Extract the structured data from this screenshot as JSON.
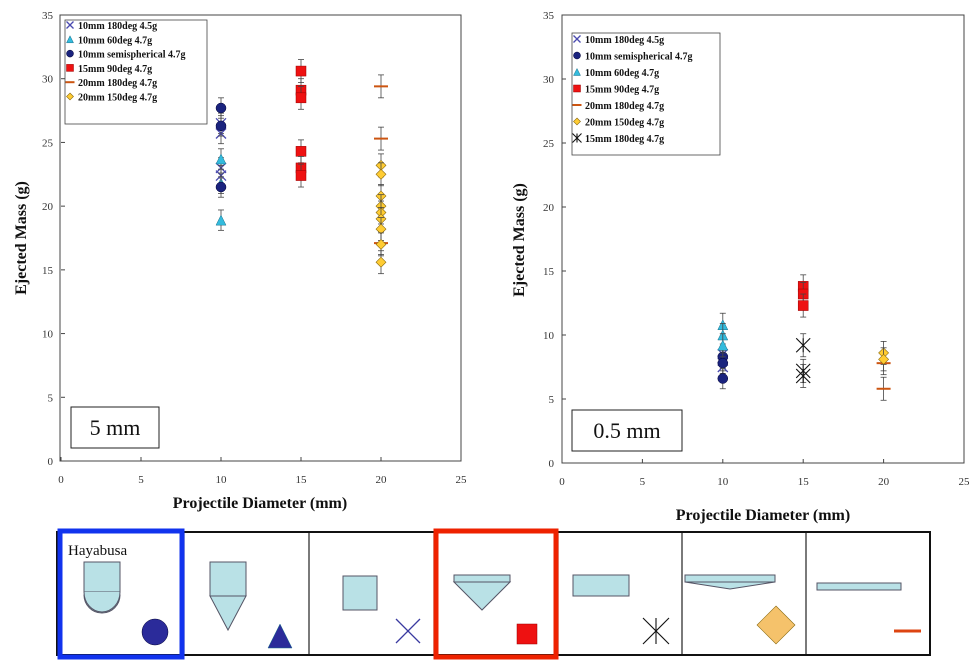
{
  "chart_data": [
    {
      "type": "scatter",
      "title": "",
      "xlabel": "Projectile Diameter (mm)",
      "ylabel": "Ejected Mass (g)",
      "xlim": [
        0,
        25
      ],
      "ylim": [
        0,
        35
      ],
      "xticks": [
        "0",
        "5",
        "10",
        "15",
        "20",
        "25"
      ],
      "yticks": [
        "0",
        "5",
        "10",
        "15",
        "20",
        "25",
        "30",
        "35"
      ],
      "grid": false,
      "legend_position": "top-left",
      "annotation": "5 mm",
      "series": [
        {
          "name": "10mm 180deg 4.5g",
          "marker": "x",
          "color": "#4a4ab0",
          "points": [
            [
              10,
              26.5
            ],
            [
              10,
              25.7
            ],
            [
              10,
              23.0
            ],
            [
              10,
              22.4
            ]
          ],
          "err": 0.8
        },
        {
          "name": "10mm 60deg 4.7g",
          "marker": "triangle",
          "color": "#33bbdd",
          "points": [
            [
              10,
              23.7
            ],
            [
              10,
              21.8
            ],
            [
              10,
              18.9
            ]
          ],
          "err": 0.8
        },
        {
          "name": "10mm semispherical 4.7g",
          "marker": "circle",
          "color": "#1a237e",
          "points": [
            [
              10,
              27.7
            ],
            [
              10,
              26.3
            ],
            [
              10,
              21.5
            ]
          ],
          "err": 0.8
        },
        {
          "name": "15mm 90deg 4.7g",
          "marker": "square",
          "color": "#ee1111",
          "points": [
            [
              15,
              30.6
            ],
            [
              15,
              29.1
            ],
            [
              15,
              28.5
            ],
            [
              15,
              24.3
            ],
            [
              15,
              23.0
            ],
            [
              15,
              22.4
            ]
          ],
          "err": 0.9
        },
        {
          "name": "20mm 180deg 4.7g",
          "marker": "dash",
          "color": "#cc5511",
          "points": [
            [
              20,
              29.4
            ],
            [
              20,
              25.3
            ],
            [
              20,
              17.1
            ]
          ],
          "err": 0.9
        },
        {
          "name": "20mm 150deg 4.7g",
          "marker": "diamond",
          "color": "#ffcc33",
          "points": [
            [
              20,
              23.2
            ],
            [
              20,
              22.5
            ],
            [
              20,
              20.8
            ],
            [
              20,
              20.0
            ],
            [
              20,
              19.5
            ],
            [
              20,
              19.0
            ],
            [
              20,
              18.2
            ],
            [
              20,
              17.0
            ],
            [
              20,
              15.6
            ]
          ],
          "err": 0.9
        }
      ]
    },
    {
      "type": "scatter",
      "title": "",
      "xlabel": "Projectile Diameter (mm)",
      "ylabel": "Ejected Mass (g)",
      "xlim": [
        0,
        25
      ],
      "ylim": [
        0,
        35
      ],
      "xticks": [
        "0",
        "5",
        "10",
        "15",
        "20",
        "25"
      ],
      "yticks": [
        "0",
        "5",
        "10",
        "15",
        "20",
        "25",
        "30",
        "35"
      ],
      "grid": false,
      "legend_position": "top-left",
      "annotation": "0.5 mm",
      "series": [
        {
          "name": "10mm 180deg 4.5g",
          "marker": "x",
          "color": "#4a4ab0",
          "points": [
            [
              10,
              8.5
            ],
            [
              10,
              8.0
            ],
            [
              10,
              7.5
            ]
          ],
          "err": 0.8
        },
        {
          "name": "10mm semispherical 4.7g",
          "marker": "circle",
          "color": "#1a237e",
          "points": [
            [
              10,
              8.3
            ],
            [
              10,
              7.8
            ],
            [
              10,
              6.6
            ]
          ],
          "err": 0.8
        },
        {
          "name": "10mm 60deg 4.7g",
          "marker": "triangle",
          "color": "#33bbdd",
          "points": [
            [
              10,
              10.8
            ],
            [
              10,
              10.0
            ],
            [
              10,
              9.2
            ]
          ],
          "err": 0.9
        },
        {
          "name": "15mm 90deg 4.7g",
          "marker": "square",
          "color": "#ee1111",
          "points": [
            [
              15,
              13.8
            ],
            [
              15,
              13.2
            ],
            [
              15,
              12.3
            ]
          ],
          "err": 0.9
        },
        {
          "name": "20mm 180deg 4.7g",
          "marker": "dash",
          "color": "#cc5511",
          "points": [
            [
              20,
              7.8
            ],
            [
              20,
              5.8
            ]
          ],
          "err": 0.9
        },
        {
          "name": "20mm 150deg 4.7g",
          "marker": "diamond",
          "color": "#ffcc33",
          "points": [
            [
              20,
              8.6
            ],
            [
              20,
              8.1
            ]
          ],
          "err": 0.9
        },
        {
          "name": "15mm 180deg 4.7g",
          "marker": "asterisk",
          "color": "#111111",
          "points": [
            [
              15,
              9.2
            ],
            [
              15,
              7.2
            ],
            [
              15,
              6.8
            ]
          ],
          "err": 0.9
        }
      ]
    }
  ],
  "shape_row": {
    "label": "Hayabusa",
    "items": [
      {
        "name": "Hayabusa semispherical",
        "marker": "circle",
        "color": "#2b2b9a",
        "highlight": "#1133ee"
      },
      {
        "name": "60deg cone",
        "marker": "triangle",
        "color": "#2b2b9a",
        "highlight": ""
      },
      {
        "name": "180deg cylinder",
        "marker": "x",
        "color": "#3a3aa0",
        "highlight": ""
      },
      {
        "name": "90deg cone",
        "marker": "square",
        "color": "#ee1111",
        "highlight": "#ee2200"
      },
      {
        "name": "15mm 180deg",
        "marker": "asterisk",
        "color": "#111111",
        "highlight": ""
      },
      {
        "name": "20mm 150deg",
        "marker": "diamond",
        "color": "#f5c26b",
        "highlight": ""
      },
      {
        "name": "20mm 180deg",
        "marker": "dash",
        "color": "#dd4411",
        "highlight": ""
      }
    ],
    "shape_fill": "#b9e1e6"
  }
}
